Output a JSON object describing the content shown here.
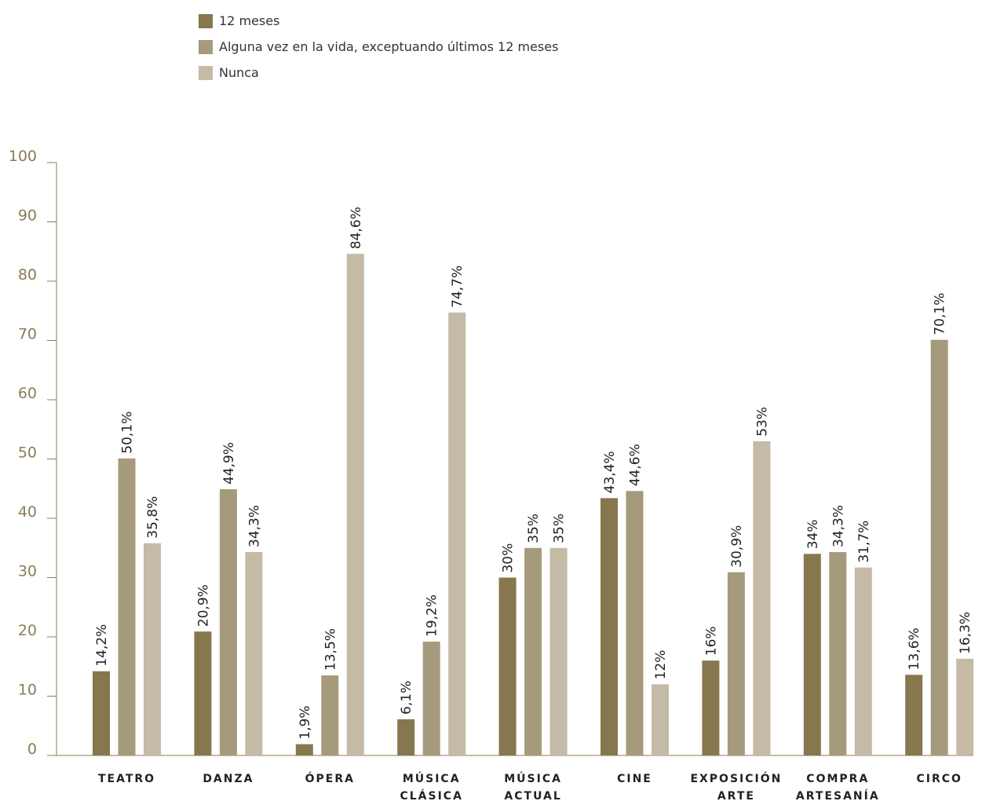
{
  "chart_data": {
    "type": "bar",
    "categories": [
      [
        "TEATRO"
      ],
      [
        "DANZA"
      ],
      [
        "ÓPERA"
      ],
      [
        "MÚSICA",
        "CLÁSICA"
      ],
      [
        "MÚSICA",
        "ACTUAL"
      ],
      [
        "CINE"
      ],
      [
        "EXPOSICIÓN",
        "ARTE"
      ],
      [
        "COMPRA",
        "ARTESANÍA"
      ],
      [
        "CIRCO"
      ]
    ],
    "series": [
      {
        "name": "12 meses",
        "color": "#87774f",
        "values": [
          14.2,
          20.9,
          1.9,
          6.1,
          30,
          43.4,
          16,
          34,
          13.6
        ],
        "labels": [
          "14,2%",
          "20,9%",
          "1,9%",
          "6,1%",
          "30%",
          "43,4%",
          "16%",
          "34%",
          "13,6%"
        ]
      },
      {
        "name": "Alguna vez en la vida, exceptuando últimos 12 meses",
        "color": "#a69a7c",
        "values": [
          50.1,
          44.9,
          13.5,
          19.2,
          35,
          44.6,
          30.9,
          34.3,
          70.1
        ],
        "labels": [
          "50,1%",
          "44,9%",
          "13,5%",
          "19,2%",
          "35%",
          "44,6%",
          "30,9%",
          "34,3%",
          "70,1%"
        ]
      },
      {
        "name": "Nunca",
        "color": "#c4baa5",
        "values": [
          35.8,
          34.3,
          84.6,
          74.7,
          35,
          12,
          53,
          31.7,
          16.3
        ],
        "labels": [
          "35,8%",
          "34,3%",
          "84,6%",
          "74,7%",
          "35%",
          "12%",
          "53%",
          "31,7%",
          "16,3%"
        ]
      }
    ],
    "yticks": [
      "0",
      "10",
      "20",
      "30",
      "40",
      "50",
      "60",
      "70",
      "80",
      "90",
      "100"
    ],
    "ylim": [
      0,
      100
    ],
    "grid": false,
    "legend_position": "top-left",
    "axis_color": "#8a7c55"
  }
}
